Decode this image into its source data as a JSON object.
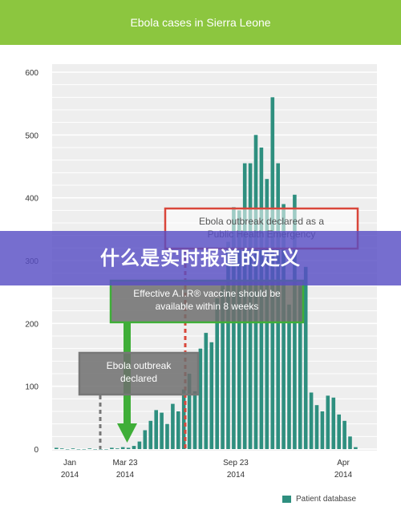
{
  "header": {
    "title": "Ebola cases in Sierra Leone",
    "color": "#8cc63f"
  },
  "banner": {
    "text": "什么是实时报道的定义"
  },
  "legend": {
    "label": "Patient database",
    "color": "#2e8f7f"
  },
  "annotations": [
    {
      "text": "Ebola outbreak declared as a\nPublic Health Emergency",
      "color": "#d9463a",
      "x_date": "Aug 8 2014"
    },
    {
      "text": "Effective A.I.R® vaccine should be\navailable within 8 weeks",
      "color": "#3fae38",
      "x_date": "Mar 23 2014"
    },
    {
      "text": "Ebola outbreak\ndeclared",
      "color": "#777777",
      "x_date": "Mar 2014"
    }
  ],
  "chart_data": {
    "type": "bar",
    "title": "Ebola cases in Sierra Leone",
    "xlabel": "",
    "ylabel": "",
    "ylim": [
      0,
      600
    ],
    "y_ticks": [
      0,
      100,
      200,
      300,
      400,
      500,
      600
    ],
    "x_ticks": [
      {
        "line1": "Jan",
        "line2": "2014"
      },
      {
        "line1": "Mar 23",
        "line2": "2014"
      },
      {
        "line1": "Sep 23",
        "line2": "2014"
      },
      {
        "line1": "Apr",
        "line2": "2014"
      }
    ],
    "grid": true,
    "legend_position": "bottom-right",
    "series": [
      {
        "name": "Patient database",
        "values": [
          2,
          1,
          0,
          1,
          0,
          0,
          1,
          0,
          0,
          0,
          2,
          1,
          3,
          2,
          5,
          12,
          30,
          45,
          62,
          58,
          40,
          72,
          60,
          95,
          120,
          92,
          160,
          185,
          170,
          240,
          260,
          330,
          385,
          380,
          455,
          455,
          500,
          480,
          430,
          560,
          455,
          390,
          230,
          405,
          260,
          290,
          90,
          70,
          60,
          85,
          82,
          55,
          45,
          20,
          3
        ]
      }
    ]
  }
}
